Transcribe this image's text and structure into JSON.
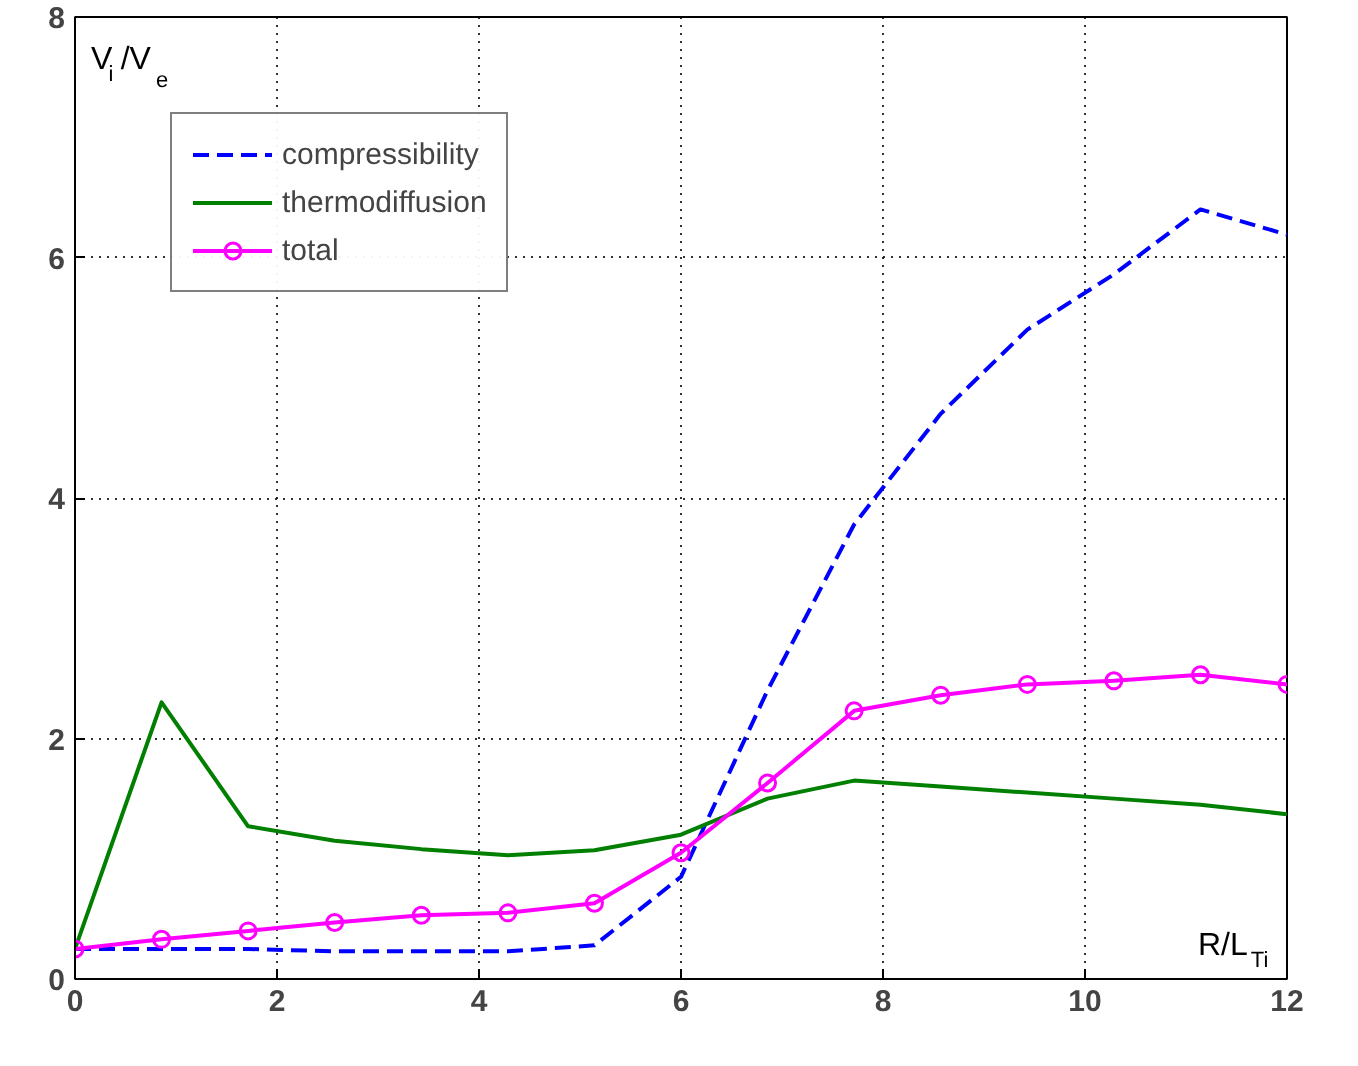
{
  "chart_data": {
    "type": "line",
    "xlabel": "R/L$_{Ti}$",
    "ylabel": "V$_{i}$/V$_{e}$",
    "x": [
      0,
      0.857,
      1.714,
      2.571,
      3.429,
      4.286,
      5.143,
      6,
      6.857,
      7.714,
      8.571,
      9.429,
      10.286,
      11.143,
      12
    ],
    "xlim": [
      0,
      12
    ],
    "ylim": [
      0,
      8
    ],
    "xticks": [
      0,
      2,
      4,
      6,
      8,
      10,
      12
    ],
    "yticks": [
      0,
      2,
      4,
      6,
      8
    ],
    "grid": true,
    "legend": "top left",
    "series": [
      {
        "name": "compressibility",
        "color": "#0000ff",
        "line_style": "dashed",
        "marker": "none",
        "values": [
          0.25,
          0.25,
          0.25,
          0.23,
          0.23,
          0.23,
          0.28,
          0.85,
          2.4,
          3.78,
          4.7,
          5.4,
          5.86,
          6.4,
          6.19
        ]
      },
      {
        "name": "thermodiffusion",
        "color": "#007f00",
        "line_style": "solid",
        "marker": "none",
        "values": [
          0.25,
          2.3,
          1.27,
          1.15,
          1.08,
          1.03,
          1.07,
          1.2,
          1.5,
          1.65,
          1.6,
          1.55,
          1.5,
          1.45,
          1.37
        ]
      },
      {
        "name": "total",
        "color": "#ff00ff",
        "line_style": "solid",
        "marker": "circle",
        "values": [
          0.25,
          0.33,
          0.4,
          0.47,
          0.53,
          0.55,
          0.63,
          1.05,
          1.63,
          2.23,
          2.36,
          2.45,
          2.48,
          2.53,
          2.45
        ]
      }
    ]
  }
}
